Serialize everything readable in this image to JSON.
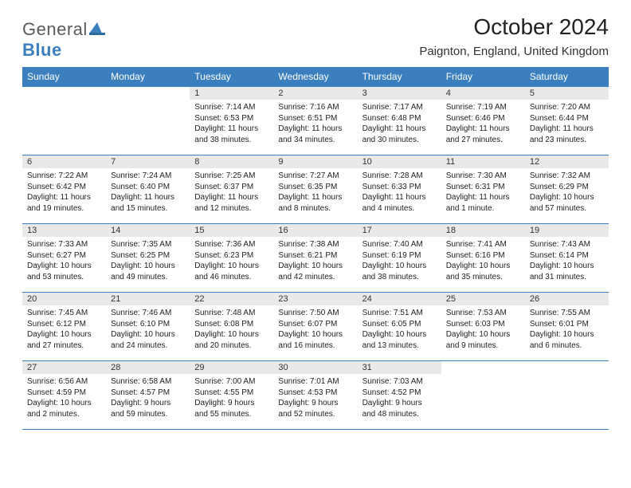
{
  "logo": {
    "general": "General",
    "blue": "Blue"
  },
  "title": "October 2024",
  "location": "Paignton, England, United Kingdom",
  "colors": {
    "accent": "#3b7fbf",
    "header_text": "#ffffff",
    "daynum_bg": "#e9e9e9",
    "text": "#222222",
    "logo_gray": "#5a5a5a"
  },
  "dayNames": [
    "Sunday",
    "Monday",
    "Tuesday",
    "Wednesday",
    "Thursday",
    "Friday",
    "Saturday"
  ],
  "weeks": [
    [
      null,
      null,
      {
        "n": "1",
        "sr": "Sunrise: 7:14 AM",
        "ss": "Sunset: 6:53 PM",
        "dl": "Daylight: 11 hours and 38 minutes."
      },
      {
        "n": "2",
        "sr": "Sunrise: 7:16 AM",
        "ss": "Sunset: 6:51 PM",
        "dl": "Daylight: 11 hours and 34 minutes."
      },
      {
        "n": "3",
        "sr": "Sunrise: 7:17 AM",
        "ss": "Sunset: 6:48 PM",
        "dl": "Daylight: 11 hours and 30 minutes."
      },
      {
        "n": "4",
        "sr": "Sunrise: 7:19 AM",
        "ss": "Sunset: 6:46 PM",
        "dl": "Daylight: 11 hours and 27 minutes."
      },
      {
        "n": "5",
        "sr": "Sunrise: 7:20 AM",
        "ss": "Sunset: 6:44 PM",
        "dl": "Daylight: 11 hours and 23 minutes."
      }
    ],
    [
      {
        "n": "6",
        "sr": "Sunrise: 7:22 AM",
        "ss": "Sunset: 6:42 PM",
        "dl": "Daylight: 11 hours and 19 minutes."
      },
      {
        "n": "7",
        "sr": "Sunrise: 7:24 AM",
        "ss": "Sunset: 6:40 PM",
        "dl": "Daylight: 11 hours and 15 minutes."
      },
      {
        "n": "8",
        "sr": "Sunrise: 7:25 AM",
        "ss": "Sunset: 6:37 PM",
        "dl": "Daylight: 11 hours and 12 minutes."
      },
      {
        "n": "9",
        "sr": "Sunrise: 7:27 AM",
        "ss": "Sunset: 6:35 PM",
        "dl": "Daylight: 11 hours and 8 minutes."
      },
      {
        "n": "10",
        "sr": "Sunrise: 7:28 AM",
        "ss": "Sunset: 6:33 PM",
        "dl": "Daylight: 11 hours and 4 minutes."
      },
      {
        "n": "11",
        "sr": "Sunrise: 7:30 AM",
        "ss": "Sunset: 6:31 PM",
        "dl": "Daylight: 11 hours and 1 minute."
      },
      {
        "n": "12",
        "sr": "Sunrise: 7:32 AM",
        "ss": "Sunset: 6:29 PM",
        "dl": "Daylight: 10 hours and 57 minutes."
      }
    ],
    [
      {
        "n": "13",
        "sr": "Sunrise: 7:33 AM",
        "ss": "Sunset: 6:27 PM",
        "dl": "Daylight: 10 hours and 53 minutes."
      },
      {
        "n": "14",
        "sr": "Sunrise: 7:35 AM",
        "ss": "Sunset: 6:25 PM",
        "dl": "Daylight: 10 hours and 49 minutes."
      },
      {
        "n": "15",
        "sr": "Sunrise: 7:36 AM",
        "ss": "Sunset: 6:23 PM",
        "dl": "Daylight: 10 hours and 46 minutes."
      },
      {
        "n": "16",
        "sr": "Sunrise: 7:38 AM",
        "ss": "Sunset: 6:21 PM",
        "dl": "Daylight: 10 hours and 42 minutes."
      },
      {
        "n": "17",
        "sr": "Sunrise: 7:40 AM",
        "ss": "Sunset: 6:19 PM",
        "dl": "Daylight: 10 hours and 38 minutes."
      },
      {
        "n": "18",
        "sr": "Sunrise: 7:41 AM",
        "ss": "Sunset: 6:16 PM",
        "dl": "Daylight: 10 hours and 35 minutes."
      },
      {
        "n": "19",
        "sr": "Sunrise: 7:43 AM",
        "ss": "Sunset: 6:14 PM",
        "dl": "Daylight: 10 hours and 31 minutes."
      }
    ],
    [
      {
        "n": "20",
        "sr": "Sunrise: 7:45 AM",
        "ss": "Sunset: 6:12 PM",
        "dl": "Daylight: 10 hours and 27 minutes."
      },
      {
        "n": "21",
        "sr": "Sunrise: 7:46 AM",
        "ss": "Sunset: 6:10 PM",
        "dl": "Daylight: 10 hours and 24 minutes."
      },
      {
        "n": "22",
        "sr": "Sunrise: 7:48 AM",
        "ss": "Sunset: 6:08 PM",
        "dl": "Daylight: 10 hours and 20 minutes."
      },
      {
        "n": "23",
        "sr": "Sunrise: 7:50 AM",
        "ss": "Sunset: 6:07 PM",
        "dl": "Daylight: 10 hours and 16 minutes."
      },
      {
        "n": "24",
        "sr": "Sunrise: 7:51 AM",
        "ss": "Sunset: 6:05 PM",
        "dl": "Daylight: 10 hours and 13 minutes."
      },
      {
        "n": "25",
        "sr": "Sunrise: 7:53 AM",
        "ss": "Sunset: 6:03 PM",
        "dl": "Daylight: 10 hours and 9 minutes."
      },
      {
        "n": "26",
        "sr": "Sunrise: 7:55 AM",
        "ss": "Sunset: 6:01 PM",
        "dl": "Daylight: 10 hours and 6 minutes."
      }
    ],
    [
      {
        "n": "27",
        "sr": "Sunrise: 6:56 AM",
        "ss": "Sunset: 4:59 PM",
        "dl": "Daylight: 10 hours and 2 minutes."
      },
      {
        "n": "28",
        "sr": "Sunrise: 6:58 AM",
        "ss": "Sunset: 4:57 PM",
        "dl": "Daylight: 9 hours and 59 minutes."
      },
      {
        "n": "29",
        "sr": "Sunrise: 7:00 AM",
        "ss": "Sunset: 4:55 PM",
        "dl": "Daylight: 9 hours and 55 minutes."
      },
      {
        "n": "30",
        "sr": "Sunrise: 7:01 AM",
        "ss": "Sunset: 4:53 PM",
        "dl": "Daylight: 9 hours and 52 minutes."
      },
      {
        "n": "31",
        "sr": "Sunrise: 7:03 AM",
        "ss": "Sunset: 4:52 PM",
        "dl": "Daylight: 9 hours and 48 minutes."
      },
      null,
      null
    ]
  ]
}
